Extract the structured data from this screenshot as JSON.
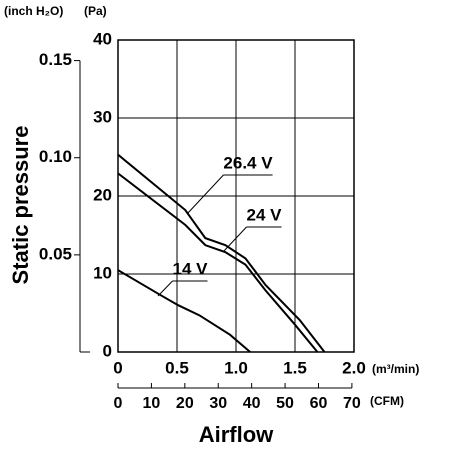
{
  "chart_data": {
    "type": "line",
    "xlabel": "Airflow",
    "ylabel": "Static pressure",
    "x_unit": "(m³/min)",
    "x2_unit": "(CFM)",
    "y_unit": "(Pa)",
    "y2_unit": "(inch H₂O)",
    "xlim": [
      0,
      2
    ],
    "xticks": [
      0,
      0.5,
      {
        "value": 1,
        "label": "1.0"
      },
      1.5,
      {
        "value": 2,
        "label": "2.0"
      }
    ],
    "x2lim": [
      0,
      70.63
    ],
    "x2ticks": [
      0,
      10,
      20,
      30,
      40,
      50,
      60,
      70
    ],
    "ylim": [
      0,
      40
    ],
    "yticks": [
      0,
      10,
      20,
      30,
      40
    ],
    "y2lim": [
      0,
      0.1606
    ],
    "y2ticks": [
      0.05,
      {
        "value": 0.1,
        "label": "0.10"
      },
      0.15
    ],
    "grid": true,
    "series": [
      {
        "name": "26.4 V",
        "color": "#000000",
        "x": [
          0,
          0.57,
          0.74,
          0.91,
          1.08,
          1.25,
          1.54,
          1.75
        ],
        "values": [
          25.3,
          18.2,
          14.6,
          13.7,
          12,
          8.6,
          4.1,
          0
        ]
      },
      {
        "name": "24 V",
        "color": "#000000",
        "x": [
          0,
          0.57,
          0.74,
          0.91,
          1.08,
          1.25,
          1.5,
          1.69
        ],
        "values": [
          22.9,
          16.3,
          13.7,
          12.8,
          11.2,
          7.9,
          3.5,
          0
        ]
      },
      {
        "name": "14 V",
        "color": "#000000",
        "x": [
          0,
          0.36,
          0.51,
          0.69,
          0.95,
          1.12
        ],
        "values": [
          10.5,
          7.3,
          6.0,
          4.7,
          2.2,
          0
        ]
      }
    ]
  }
}
